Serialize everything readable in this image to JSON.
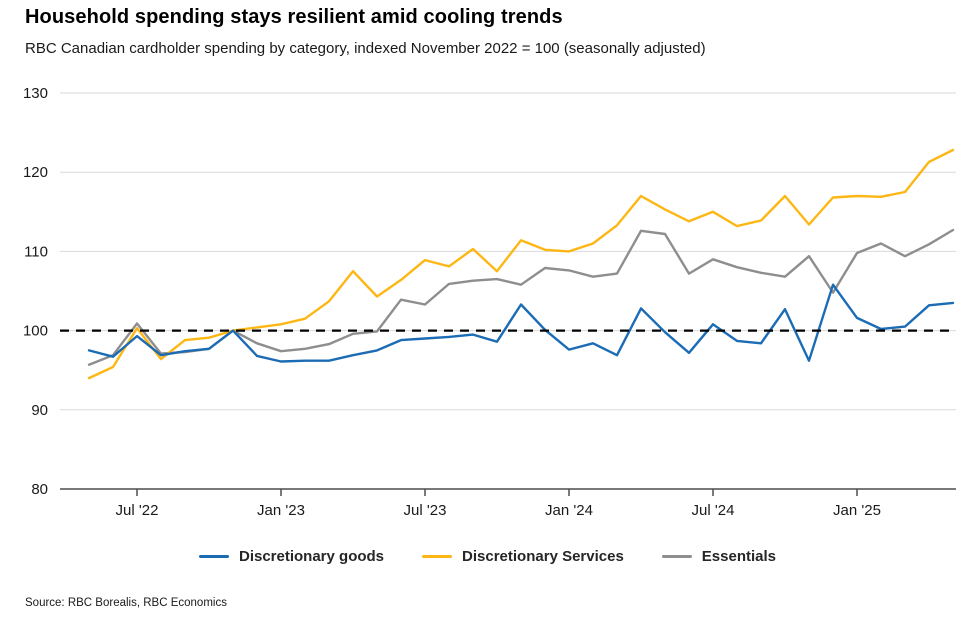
{
  "title": "Household spending stays resilient amid cooling trends",
  "subtitle": "RBC Canadian cardholder spending by category, indexed November 2022 = 100 (seasonally adjusted)",
  "source": "Source: RBC Borealis, RBC Economics",
  "colors": {
    "blue": "#1B6CB5",
    "yellow": "#FDB714",
    "gray": "#8E8E8E",
    "grid": "#D9D9D9",
    "axis": "#4D4D4D",
    "tick_text": "#1a1a1a",
    "reference": "#000000"
  },
  "chart_data": {
    "type": "line",
    "title": "Household spending stays resilient amid cooling trends",
    "subtitle": "RBC Canadian cardholder spending by category, indexed November 2022 = 100 (seasonally adjusted)",
    "xlabel": "",
    "ylabel": "",
    "ylim": [
      80,
      130
    ],
    "y_ticks": [
      80,
      90,
      100,
      110,
      120,
      130
    ],
    "reference_line": 100,
    "grid": true,
    "legend_position": "bottom",
    "x": [
      "May '22",
      "Jun '22",
      "Jul '22",
      "Aug '22",
      "Sep '22",
      "Oct '22",
      "Nov '22",
      "Dec '22",
      "Jan '23",
      "Feb '23",
      "Mar '23",
      "Apr '23",
      "May '23",
      "Jun '23",
      "Jul '23",
      "Aug '23",
      "Sep '23",
      "Oct '23",
      "Nov '23",
      "Dec '23",
      "Jan '24",
      "Feb '24",
      "Mar '24",
      "Apr '24",
      "May '24",
      "Jun '24",
      "Jul '24",
      "Aug '24",
      "Sep '24",
      "Oct '24",
      "Nov '24",
      "Dec '24",
      "Jan '25",
      "Feb '25",
      "Mar '25",
      "Apr '25",
      "May '25"
    ],
    "x_tick_labels": [
      "Jul '22",
      "Jan '23",
      "Jul '23",
      "Jan '24",
      "Jul '24",
      "Jan '25"
    ],
    "x_tick_indices": [
      2,
      8,
      14,
      20,
      26,
      32
    ],
    "series": [
      {
        "name": "Discretionary goods",
        "color": "#1B6CB5",
        "values": [
          97.5,
          96.7,
          99.3,
          96.9,
          97.4,
          97.7,
          100.0,
          96.8,
          96.1,
          96.2,
          96.2,
          96.9,
          97.5,
          98.8,
          99.0,
          99.2,
          99.5,
          98.6,
          103.3,
          100.1,
          97.6,
          98.4,
          96.9,
          102.8,
          99.8,
          97.2,
          100.8,
          98.7,
          98.4,
          102.7,
          96.2,
          105.8,
          101.6,
          100.2,
          100.5,
          103.2,
          103.5
        ]
      },
      {
        "name": "Discretionary Services",
        "color": "#FDB714",
        "values": [
          94.0,
          95.4,
          100.3,
          96.4,
          98.8,
          99.1,
          100.0,
          100.4,
          100.8,
          101.5,
          103.7,
          107.5,
          104.3,
          106.4,
          108.9,
          108.1,
          110.3,
          107.5,
          111.4,
          110.2,
          110.0,
          111.0,
          113.3,
          117.0,
          115.3,
          113.8,
          115.0,
          113.2,
          113.9,
          117.0,
          113.4,
          116.8,
          117.0,
          116.9,
          117.5,
          121.3,
          122.8
        ]
      },
      {
        "name": "Essentials",
        "color": "#8E8E8E",
        "values": [
          95.7,
          96.9,
          100.9,
          97.1,
          97.3,
          97.7,
          100.0,
          98.4,
          97.4,
          97.7,
          98.3,
          99.6,
          99.9,
          103.9,
          103.3,
          105.9,
          106.3,
          106.5,
          105.8,
          107.9,
          107.6,
          106.8,
          107.2,
          112.6,
          112.2,
          107.2,
          109.0,
          108.0,
          107.3,
          106.8,
          109.4,
          104.8,
          109.8,
          111.0,
          109.4,
          110.9,
          112.7
        ]
      }
    ]
  }
}
